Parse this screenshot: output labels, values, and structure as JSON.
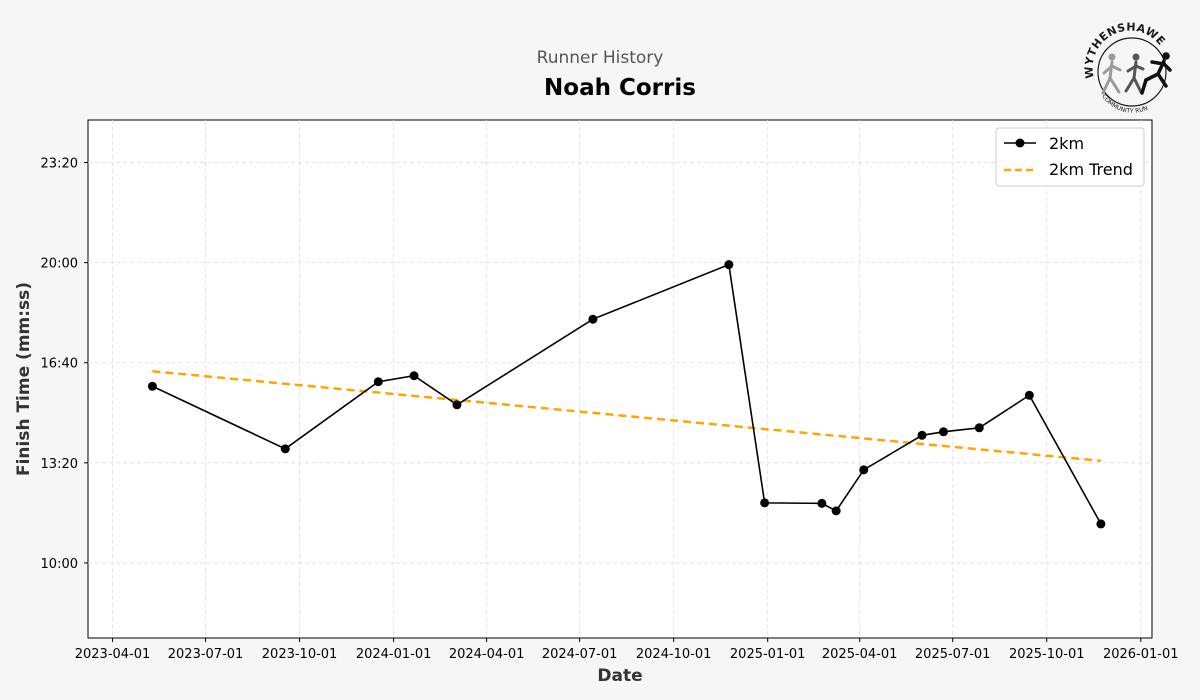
{
  "header": {
    "subtitle": "Runner History",
    "runner_name": "Noah Corris"
  },
  "logo": {
    "top_text": "WYTHENSHAWE",
    "bottom_text": "COMMUNITY RUN"
  },
  "chart_data": {
    "type": "line",
    "title": "Noah Corris",
    "subtitle": "Runner History",
    "xlabel": "Date",
    "ylabel": "Finish Time (mm:ss)",
    "x_type": "date",
    "xlim": [
      "2023-03-08",
      "2026-01-12"
    ],
    "ylim_seconds": [
      450,
      1485
    ],
    "x_ticks": [
      "2023-04-01",
      "2023-07-01",
      "2023-10-01",
      "2024-01-01",
      "2024-04-01",
      "2024-07-01",
      "2024-10-01",
      "2025-01-01",
      "2025-04-01",
      "2025-07-01",
      "2025-10-01",
      "2026-01-01"
    ],
    "y_ticks": [
      {
        "seconds": 600,
        "label": "10:00"
      },
      {
        "seconds": 800,
        "label": "13:20"
      },
      {
        "seconds": 1000,
        "label": "16:40"
      },
      {
        "seconds": 1200,
        "label": "20:00"
      },
      {
        "seconds": 1400,
        "label": "23:20"
      }
    ],
    "grid": true,
    "legend_position": "top-right",
    "series": [
      {
        "name": "2km",
        "style": "line-markers",
        "color": "#000000",
        "points": [
          {
            "date": "2023-05-10",
            "seconds": 953
          },
          {
            "date": "2023-09-17",
            "seconds": 828
          },
          {
            "date": "2023-12-17",
            "seconds": 962
          },
          {
            "date": "2024-01-21",
            "seconds": 974
          },
          {
            "date": "2024-03-03",
            "seconds": 916
          },
          {
            "date": "2024-07-14",
            "seconds": 1087
          },
          {
            "date": "2024-11-24",
            "seconds": 1196
          },
          {
            "date": "2024-12-29",
            "seconds": 720
          },
          {
            "date": "2025-02-23",
            "seconds": 719
          },
          {
            "date": "2025-03-09",
            "seconds": 704
          },
          {
            "date": "2025-04-05",
            "seconds": 786
          },
          {
            "date": "2025-06-01",
            "seconds": 855
          },
          {
            "date": "2025-06-22",
            "seconds": 862
          },
          {
            "date": "2025-07-27",
            "seconds": 870
          },
          {
            "date": "2025-09-14",
            "seconds": 935
          },
          {
            "date": "2025-11-23",
            "seconds": 678
          }
        ]
      },
      {
        "name": "2km Trend",
        "style": "dashed",
        "color": "#ffa500",
        "points": [
          {
            "date": "2023-05-10",
            "seconds": 983
          },
          {
            "date": "2025-11-23",
            "seconds": 804
          }
        ]
      }
    ]
  }
}
